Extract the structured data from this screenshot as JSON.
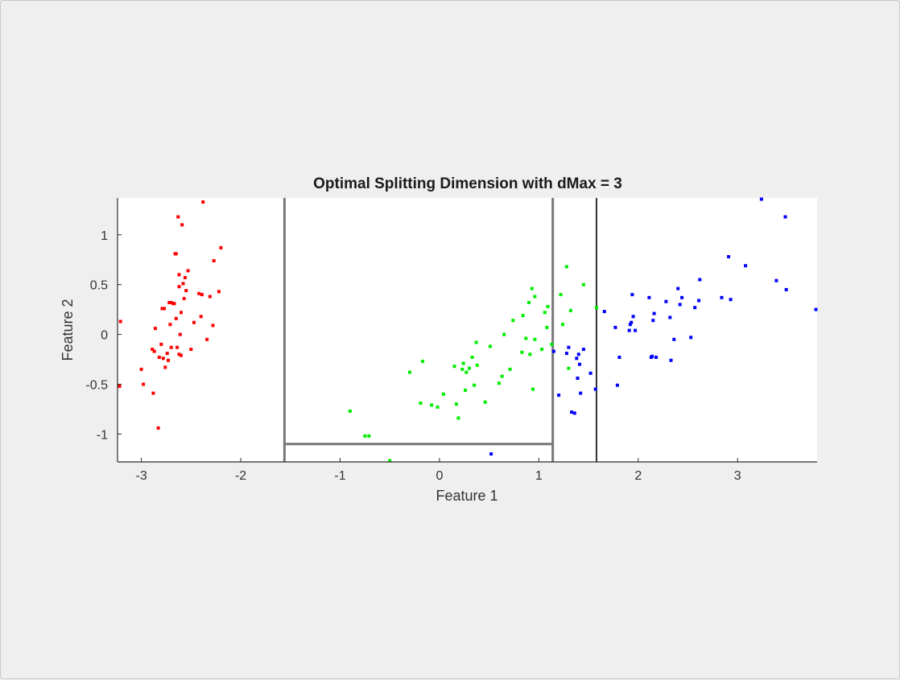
{
  "chart_data": {
    "type": "scatter",
    "title": "Optimal Splitting Dimension with dMax = 3",
    "xlabel": "Feature 1",
    "ylabel": "Feature 2",
    "xlim": [
      -3.24,
      3.8
    ],
    "ylim": [
      -1.28,
      1.37
    ],
    "xticks": [
      -3,
      -2,
      -1,
      0,
      1,
      2,
      3
    ],
    "xtick_labels": [
      "-3",
      "-2",
      "-1",
      "0",
      "1",
      "2",
      "3"
    ],
    "yticks": [
      -1,
      -0.5,
      0,
      0.5,
      1
    ],
    "ytick_labels": [
      "-1",
      "-0.5",
      "0",
      "0.5",
      "1"
    ],
    "grid": false,
    "split_lines": [
      {
        "orientation": "vertical",
        "at": -1.56,
        "from": -1.28,
        "to": 1.37,
        "color": "#777777"
      },
      {
        "orientation": "vertical",
        "at": 1.14,
        "from": -1.28,
        "to": 1.37,
        "color": "#777777"
      },
      {
        "orientation": "vertical",
        "at": 1.58,
        "from": -1.28,
        "to": 1.37,
        "color": "#000000"
      },
      {
        "orientation": "horizontal",
        "at": -1.1,
        "from": -1.56,
        "to": 1.14,
        "color": "#777777"
      }
    ],
    "series": [
      {
        "color": "#ff0000",
        "x": [
          -3.21,
          -3.22,
          -3.0,
          -2.98,
          -2.89,
          -2.88,
          -2.86,
          -2.83,
          -2.82,
          -2.8,
          -2.79,
          -2.78,
          -2.77,
          -2.76,
          -2.74,
          -2.73,
          -2.72,
          -2.71,
          -2.7,
          -2.68,
          -2.67,
          -2.66,
          -2.65,
          -2.64,
          -2.63,
          -2.62,
          -2.62,
          -2.61,
          -2.6,
          -2.6,
          -2.59,
          -2.58,
          -2.57,
          -2.56,
          -2.55,
          -2.53,
          -2.5,
          -2.47,
          -2.42,
          -2.4,
          -2.38,
          -2.34,
          -2.31,
          -2.28,
          -2.27,
          -2.22,
          -2.2,
          -2.39,
          -2.87,
          -2.65,
          -2.7,
          -2.62
        ],
        "y": [
          0.13,
          -0.52,
          -0.35,
          -0.5,
          -0.15,
          -0.59,
          0.06,
          -0.94,
          -0.23,
          -0.1,
          0.26,
          -0.24,
          0.26,
          -0.33,
          -0.19,
          -0.26,
          0.32,
          0.1,
          -0.13,
          0.31,
          0.31,
          0.81,
          0.81,
          -0.13,
          1.18,
          0.6,
          -0.2,
          0.0,
          -0.21,
          0.22,
          1.1,
          0.51,
          0.36,
          0.57,
          0.44,
          0.64,
          -0.15,
          0.12,
          0.41,
          0.18,
          1.33,
          -0.05,
          0.38,
          0.09,
          0.74,
          0.43,
          0.87,
          0.4,
          -0.17,
          0.16,
          0.32,
          0.48
        ]
      },
      {
        "color": "#00ee00",
        "x": [
          -0.9,
          -0.75,
          -0.71,
          -0.5,
          -0.3,
          -0.19,
          -0.17,
          -0.08,
          -0.02,
          0.04,
          0.15,
          0.17,
          0.19,
          0.23,
          0.24,
          0.26,
          0.27,
          0.3,
          0.33,
          0.35,
          0.37,
          0.38,
          0.46,
          0.51,
          0.6,
          0.63,
          0.65,
          0.71,
          0.83,
          0.84,
          0.87,
          0.9,
          0.91,
          0.93,
          0.94,
          0.96,
          1.03,
          1.06,
          1.08,
          1.09,
          1.13,
          1.22,
          1.24,
          1.28,
          1.3,
          1.32,
          1.45,
          1.58,
          0.74,
          0.96
        ],
        "y": [
          -0.77,
          -1.02,
          -1.02,
          -1.28,
          -0.38,
          -0.69,
          -0.27,
          -0.71,
          -0.73,
          -0.6,
          -0.32,
          -0.7,
          -0.84,
          -0.35,
          -0.29,
          -0.56,
          -0.38,
          -0.34,
          -0.23,
          -0.51,
          -0.08,
          -0.31,
          -0.68,
          -0.12,
          -0.49,
          -0.42,
          0.0,
          -0.35,
          -0.18,
          0.19,
          -0.04,
          0.32,
          -0.2,
          0.46,
          -0.55,
          0.38,
          -0.15,
          0.22,
          0.07,
          0.28,
          -0.1,
          0.4,
          0.1,
          0.68,
          -0.34,
          0.24,
          0.5,
          0.27,
          0.14,
          -0.05
        ]
      },
      {
        "color": "#0000ff",
        "x": [
          0.52,
          1.15,
          1.2,
          1.28,
          1.3,
          1.33,
          1.36,
          1.38,
          1.39,
          1.41,
          1.42,
          1.45,
          1.52,
          1.57,
          1.66,
          1.77,
          1.79,
          1.81,
          1.91,
          1.92,
          1.93,
          1.94,
          1.95,
          1.97,
          2.11,
          2.13,
          2.15,
          2.16,
          2.18,
          2.28,
          2.32,
          2.33,
          2.36,
          2.4,
          2.42,
          2.44,
          2.53,
          2.57,
          2.61,
          2.62,
          2.84,
          2.91,
          2.93,
          3.08,
          3.24,
          3.39,
          3.48,
          3.49,
          3.8,
          1.4,
          2.14
        ],
        "y": [
          -1.2,
          -0.17,
          -0.61,
          -0.19,
          -0.13,
          -0.78,
          -0.79,
          -0.24,
          -0.44,
          -0.3,
          -0.59,
          -0.15,
          -0.39,
          -0.55,
          0.23,
          0.07,
          -0.51,
          -0.23,
          0.04,
          0.1,
          0.12,
          0.4,
          0.18,
          0.04,
          0.37,
          -0.23,
          0.14,
          0.21,
          -0.23,
          0.33,
          0.17,
          -0.26,
          -0.05,
          0.46,
          0.3,
          0.37,
          -0.03,
          0.27,
          0.34,
          0.55,
          0.37,
          0.78,
          0.35,
          0.69,
          1.37,
          0.54,
          1.18,
          0.45,
          0.25,
          -0.2,
          -0.22
        ]
      }
    ]
  }
}
